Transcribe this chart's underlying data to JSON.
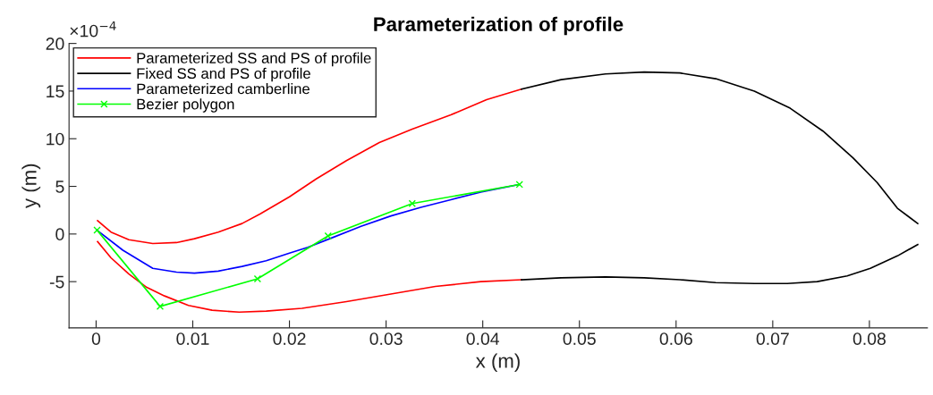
{
  "chart_data": {
    "type": "line",
    "title": "Parameterization of profile",
    "xlabel": "x (m)",
    "ylabel": "y (m)",
    "annotations": [
      "×10$^{−4}$"
    ],
    "xlim": [
      -0.0028,
      0.086
    ],
    "ylim": [
      -9.85,
      20
    ],
    "xticks": [
      {
        "value": 0,
        "label": "0"
      },
      {
        "value": 0.01,
        "label": "0.01"
      },
      {
        "value": 0.02,
        "label": "0.02"
      },
      {
        "value": 0.03,
        "label": "0.03"
      },
      {
        "value": 0.04,
        "label": "0.04"
      },
      {
        "value": 0.05,
        "label": "0.05"
      },
      {
        "value": 0.06,
        "label": "0.06"
      },
      {
        "value": 0.07,
        "label": "0.07"
      },
      {
        "value": 0.08,
        "label": "0.08"
      }
    ],
    "yticks": [
      -5,
      0,
      5,
      10,
      15,
      20
    ],
    "grid": false,
    "legend": "top left",
    "line_style": "solid",
    "series": [
      {
        "name": "Parameterized SS and PS of profile",
        "color": "#ff0000",
        "marker": "none",
        "x": [
          0.00015,
          0.00154,
          0.00339,
          0.00586,
          0.00832,
          0.01017,
          0.01264,
          0.0151,
          0.01695,
          0.02,
          0.0228,
          0.0259,
          0.0293,
          0.0327,
          0.0367,
          0.0404,
          0.044
        ],
        "values": [
          1.4,
          0.2,
          -0.6,
          -1.0,
          -0.9,
          -0.5,
          0.2,
          1.1,
          2.1,
          3.9,
          5.8,
          7.7,
          9.6,
          11.0,
          12.5,
          14.1,
          15.2
        ]
      },
      {
        "color": "#ff0000",
        "marker": "none",
        "x": [
          0.00015,
          0.00154,
          0.00339,
          0.00524,
          0.00708,
          0.00955,
          0.012,
          0.0148,
          0.0176,
          0.0213,
          0.0259,
          0.0305,
          0.0351,
          0.0398,
          0.044
        ],
        "values": [
          -0.8,
          -2.5,
          -4.2,
          -5.6,
          -6.5,
          -7.5,
          -8.0,
          -8.2,
          -8.1,
          -7.8,
          -7.1,
          -6.3,
          -5.5,
          -5.0,
          -4.8
        ]
      },
      {
        "name": "Fixed SS and PS of profile",
        "color": "#000000",
        "marker": "none",
        "x": [
          0.044,
          0.0481,
          0.0527,
          0.0567,
          0.0604,
          0.0641,
          0.0681,
          0.0718,
          0.0752,
          0.0783,
          0.0808,
          0.0829,
          0.085
        ],
        "values": [
          15.2,
          16.2,
          16.8,
          17.0,
          16.9,
          16.3,
          15.0,
          13.2,
          10.8,
          8.0,
          5.4,
          2.7,
          1.1
        ]
      },
      {
        "color": "#000000",
        "marker": "none",
        "x": [
          0.044,
          0.0481,
          0.0527,
          0.0567,
          0.0604,
          0.0641,
          0.0681,
          0.0715,
          0.0746,
          0.0777,
          0.0801,
          0.0829,
          0.085
        ],
        "values": [
          -4.8,
          -4.6,
          -4.5,
          -4.6,
          -4.8,
          -5.1,
          -5.2,
          -5.2,
          -5.0,
          -4.4,
          -3.6,
          -2.3,
          -1.1
        ]
      },
      {
        "name": "Parameterized camberline",
        "color": "#0000ff",
        "marker": "none",
        "x": [
          0.0001,
          0.00277,
          0.00586,
          0.00832,
          0.01017,
          0.01264,
          0.0151,
          0.0176,
          0.02,
          0.0219,
          0.0244,
          0.0274,
          0.0305,
          0.0336,
          0.0367,
          0.0398,
          0.0438
        ],
        "values": [
          0.4,
          -1.7,
          -3.6,
          -4.0,
          -4.1,
          -3.9,
          -3.4,
          -2.8,
          -2.0,
          -1.4,
          -0.4,
          0.8,
          1.9,
          2.8,
          3.6,
          4.4,
          5.2
        ]
      },
      {
        "name": "Bezier polygon",
        "color": "#00ff00",
        "marker": "cross",
        "x": [
          0.0001,
          0.00662,
          0.0167,
          0.024,
          0.0327,
          0.0438
        ],
        "values": [
          0.4,
          -7.6,
          -4.7,
          -0.2,
          3.2,
          5.2
        ]
      }
    ]
  }
}
